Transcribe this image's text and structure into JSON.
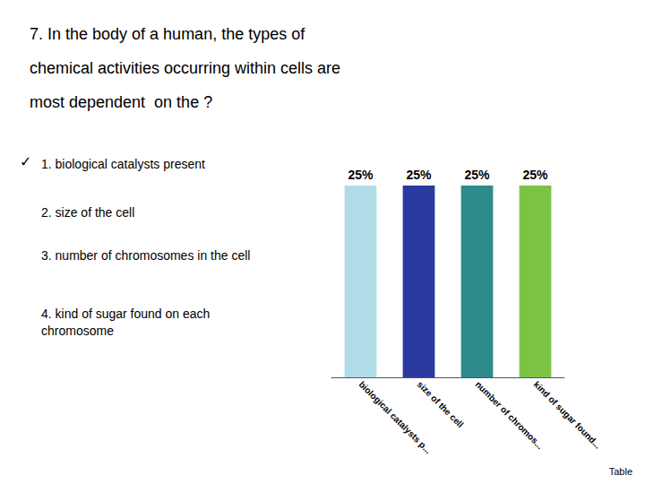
{
  "chart_data": {
    "type": "bar",
    "title": "7. In the body of a human, the types of\nchemical activities occurring within cells are\nmost dependent  on the ?",
    "categories": [
      "biological catalysts p...",
      "size of the cell",
      "number of chromos...",
      "kind of sugar found..."
    ],
    "values": [
      25,
      25,
      25,
      25
    ],
    "value_labels": [
      "25%",
      "25%",
      "25%",
      "25%"
    ],
    "colors": [
      "#b0dce8",
      "#2b3a9e",
      "#2e8b8b",
      "#7cc244"
    ],
    "ylim": [
      0,
      34
    ],
    "data_labels": true,
    "tick_labels": "x",
    "grid": false,
    "annotations": [
      "✓",
      "1. biological catalysts present",
      "2. size of the cell",
      "3. number of chromosomes in the cell",
      "4. kind of sugar found on each\nchromosome",
      "Table"
    ]
  }
}
